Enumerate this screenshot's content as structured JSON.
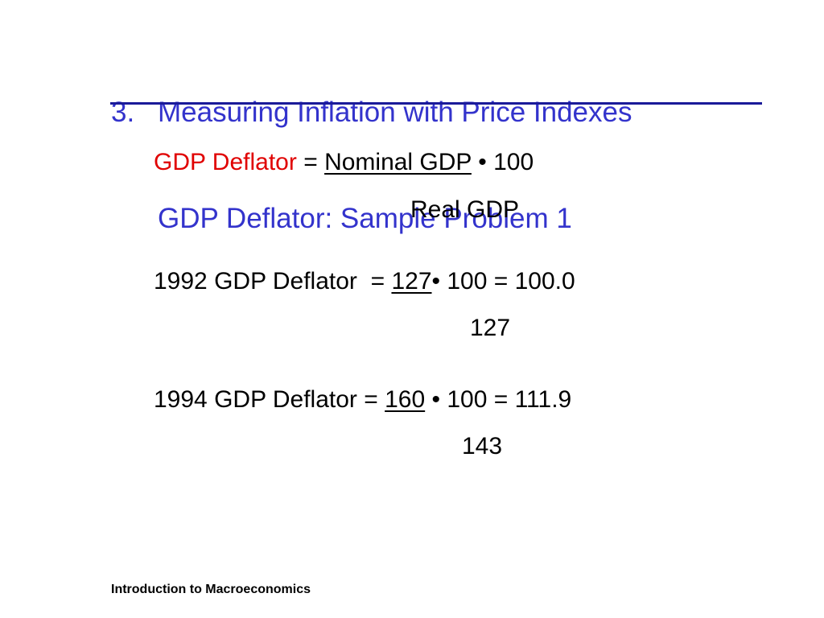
{
  "title": {
    "number": "3.",
    "line1": "Measuring Inflation with Price Indexes",
    "line2": "GDP Deflator: Sample Problem 1"
  },
  "formula": {
    "label": "GDP Deflator",
    "equals": " = ",
    "numerator": "Nominal GDP",
    "times": " • 100",
    "denominator": "Real GDP"
  },
  "example_1992": {
    "label": "1992 GDP Deflator  = ",
    "numerator": "127",
    "rest": "• 100 = 100.0",
    "denominator": "127"
  },
  "example_1994": {
    "label": "1994 GDP Deflator = ",
    "numerator": "160",
    "rest": " • 100 = 111.9",
    "denominator": "143"
  },
  "footer": "Introduction to Macroeconomics",
  "colors": {
    "title": "#3333cc",
    "rule": "#1a1a99",
    "highlight": "#e00000"
  }
}
